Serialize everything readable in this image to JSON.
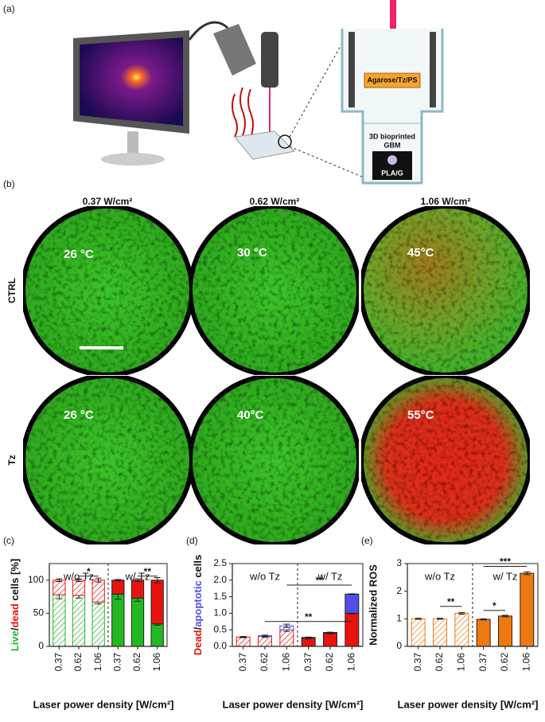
{
  "panel_a": {
    "label": "(a)",
    "agarose_label": "Agarose/Tz/PS",
    "gbm_label": [
      "3D bioprinted",
      "GBM"
    ],
    "substrate_label": "PLA/G"
  },
  "panel_b": {
    "label": "(b)",
    "columns": [
      "0.37 W/cm²",
      "0.62 W/cm²",
      "1.06 W/cm²"
    ],
    "rows": [
      {
        "label": "CTRL",
        "temperatures": [
          "26 °C",
          "30 °C",
          "45°C"
        ]
      },
      {
        "label": "Tz",
        "temperatures": [
          "26 °C",
          "40°C",
          "55°C"
        ]
      }
    ]
  },
  "chart_data": [
    {
      "panel": "(c)",
      "type": "bar",
      "stacked": true,
      "categories": [
        "0.37",
        "0.62",
        "1.06",
        "0.37",
        "0.62",
        "1.06"
      ],
      "group_labels": [
        "w/o Tz",
        "w/ Tz"
      ],
      "hatched": [
        true,
        true,
        true,
        false,
        false,
        false
      ],
      "series": [
        {
          "name": "Live",
          "color": "#22b822",
          "values": [
            78,
            77,
            67,
            79,
            73,
            34
          ],
          "errors": [
            6,
            4,
            3,
            8,
            5,
            2
          ]
        },
        {
          "name": "dead",
          "color": "#e8130f",
          "values": [
            22,
            23,
            33,
            21,
            27,
            66
          ],
          "errors": [
            2,
            2,
            3,
            1,
            2,
            4
          ]
        }
      ],
      "ylabel_separator": "/",
      "ylabel_suffix": " cells [%]",
      "xlabel": "Laser power density [W/cm²]",
      "ylim": [
        0,
        125
      ],
      "yticks": [
        0,
        50,
        100
      ],
      "significance": [
        {
          "label": "*",
          "from": 1,
          "to": 2,
          "y": 106
        },
        {
          "label": "**",
          "from": 4,
          "to": 5,
          "y": 106
        }
      ]
    },
    {
      "panel": "(d)",
      "type": "bar",
      "stacked": true,
      "categories": [
        "0.37",
        "0.62",
        "1.06",
        "0.37",
        "0.62",
        "1.06"
      ],
      "group_labels": [
        "w/o Tz",
        "w/ Tz"
      ],
      "hatched": [
        true,
        true,
        true,
        false,
        false,
        false
      ],
      "series": [
        {
          "name": "Dead",
          "color": "#e8130f",
          "values": [
            0.28,
            0.3,
            0.5,
            0.25,
            0.4,
            1.0
          ],
          "errors": [
            0.02,
            0.03,
            0.05,
            0.03,
            0.02,
            0.02
          ]
        },
        {
          "name": "apoptotic",
          "color": "#4f4fe8",
          "values": [
            0,
            0.02,
            0.12,
            0.02,
            0.02,
            0.58
          ],
          "errors": [
            0.01,
            0.02,
            0.05,
            0.01,
            0.01,
            0.01
          ]
        }
      ],
      "ylabel_separator": "/",
      "ylabel_suffix": " cells",
      "xlabel": "Laser power density [W/cm²]",
      "ylim": [
        0,
        2.5
      ],
      "yticks": [
        {
          "value": 0,
          "label": "0.0"
        },
        0.5,
        {
          "value": 1,
          "label": "1.0"
        },
        1.5,
        {
          "value": 2,
          "label": "2.0"
        },
        2.5
      ],
      "significance": [
        {
          "label": "**",
          "from": 1,
          "to": 5,
          "y": 0.75
        },
        {
          "label": "**",
          "from": 2,
          "to": 5,
          "y": 1.85
        }
      ]
    },
    {
      "panel": "(e)",
      "type": "bar",
      "stacked": false,
      "categories": [
        "0.37",
        "0.62",
        "1.06",
        "0.37",
        "0.62",
        "1.06"
      ],
      "group_labels": [
        "w/o Tz",
        "w/ Tz"
      ],
      "hatched": [
        true,
        true,
        true,
        false,
        false,
        false
      ],
      "color": "#f07810",
      "values": [
        1.0,
        1.0,
        1.2,
        0.98,
        1.1,
        2.65
      ],
      "errors": [
        0.02,
        0.02,
        0.03,
        0.02,
        0.03,
        0.05
      ],
      "ylabel": "Normalized ROS",
      "xlabel": "Laser power density [W/cm²]",
      "ylim": [
        0,
        3
      ],
      "yticks": [
        0,
        1,
        2,
        3
      ],
      "significance": [
        {
          "label": "**",
          "from": 1,
          "to": 2,
          "y": 1.45
        },
        {
          "label": "*",
          "from": 3,
          "to": 4,
          "y": 1.3
        },
        {
          "label": "***",
          "from": 3,
          "to": 5,
          "y": 2.9
        }
      ]
    }
  ]
}
